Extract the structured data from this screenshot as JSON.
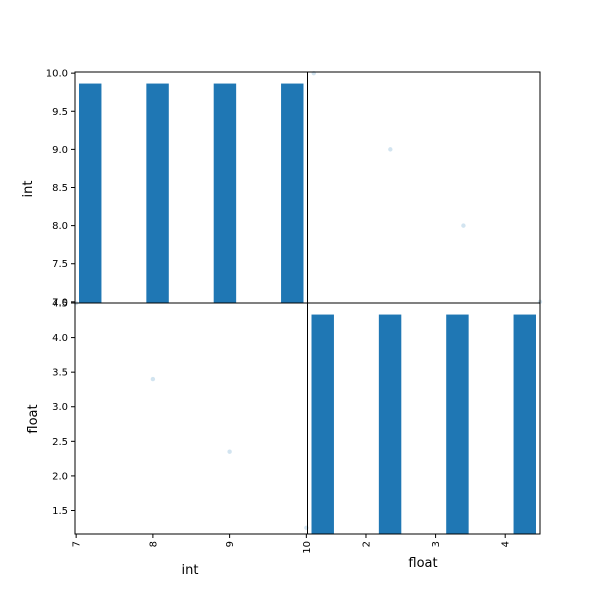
{
  "chart_data": {
    "type": "scatter",
    "variables": [
      "int",
      "float"
    ],
    "data": {
      "int": [
        7,
        8,
        9,
        10
      ],
      "float": [
        4.5,
        3.4,
        2.35,
        1.25
      ]
    },
    "ranges": {
      "int": [
        6.985,
        10.015
      ],
      "float": [
        1.16,
        4.5
      ]
    },
    "ticks": {
      "int_as_y": [
        "7.0",
        "7.5",
        "8.0",
        "8.5",
        "9.0",
        "9.5",
        "10.0"
      ],
      "float_as_y": [
        "1.5",
        "2.0",
        "2.5",
        "3.0",
        "3.5",
        "4.0",
        "4.5"
      ],
      "int_as_x": [
        "7",
        "8",
        "9",
        "10"
      ],
      "float_as_x": [
        "2",
        "3",
        "4"
      ]
    },
    "histograms": {
      "int": {
        "range": [
          7,
          10
        ],
        "bins": 10,
        "counts": [
          1,
          0,
          0,
          1,
          0,
          0,
          1,
          0,
          0,
          1
        ]
      },
      "float": {
        "range": [
          1.25,
          4.5
        ],
        "bins": 10,
        "counts": [
          1,
          0,
          0,
          1,
          0,
          0,
          1,
          0,
          0,
          1
        ]
      }
    },
    "xlabels": [
      "int",
      "float"
    ],
    "ylabels": [
      "int",
      "float"
    ],
    "colors": {
      "bar": "#1f77b4",
      "point": "#1f77b4"
    },
    "grid": false
  }
}
